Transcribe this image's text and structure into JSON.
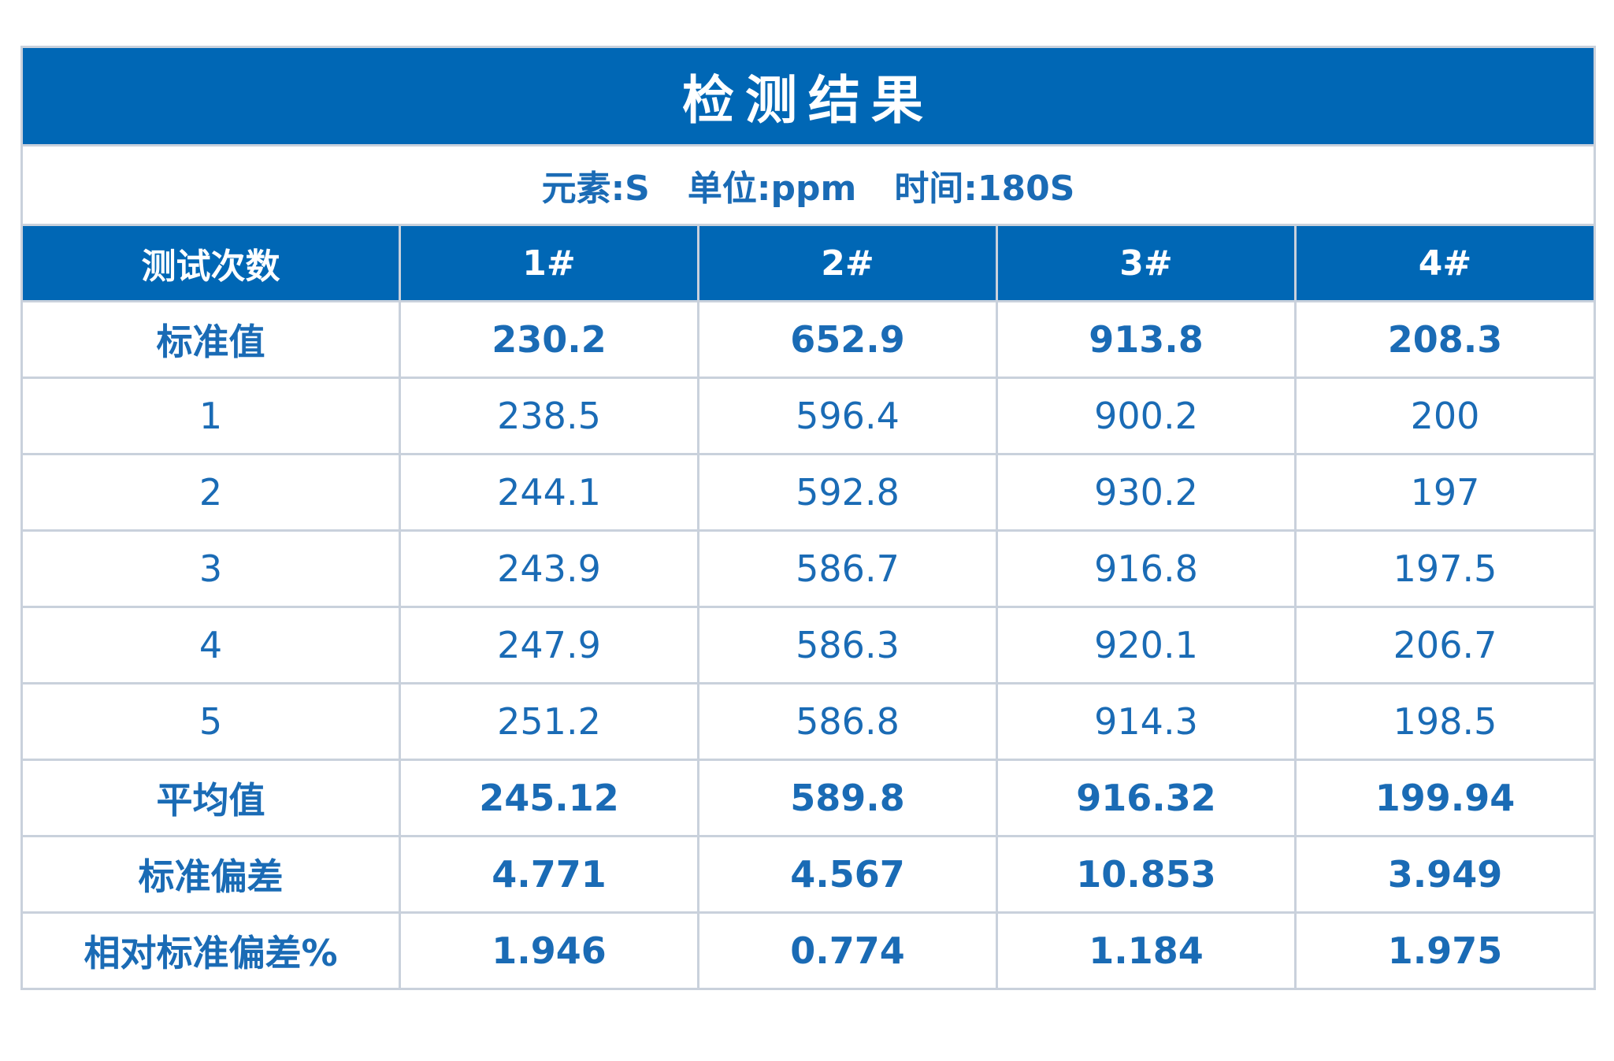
{
  "title": "检测结果",
  "subtitle": [
    "元素:S",
    "单位:ppm",
    "时间:180S"
  ],
  "table": {
    "header": [
      "测试次数",
      "1#",
      "2#",
      "3#",
      "4#"
    ],
    "rows": [
      [
        "标准值",
        "230.2",
        "652.9",
        "913.8",
        "208.3"
      ],
      [
        "1",
        "238.5",
        "596.4",
        "900.2",
        "200"
      ],
      [
        "2",
        "244.1",
        "592.8",
        "930.2",
        "197"
      ],
      [
        "3",
        "243.9",
        "586.7",
        "916.8",
        "197.5"
      ],
      [
        "4",
        "247.9",
        "586.3",
        "920.1",
        "206.7"
      ],
      [
        "5",
        "251.2",
        "586.8",
        "914.3",
        "198.5"
      ],
      [
        "平均值",
        "245.12",
        "589.8",
        "916.32",
        "199.94"
      ],
      [
        "标准偏差",
        "4.771",
        "4.567",
        "10.853",
        "3.949"
      ],
      [
        "相对标准偏差%",
        "1.946",
        "0.774",
        "1.184",
        "1.975"
      ]
    ]
  }
}
